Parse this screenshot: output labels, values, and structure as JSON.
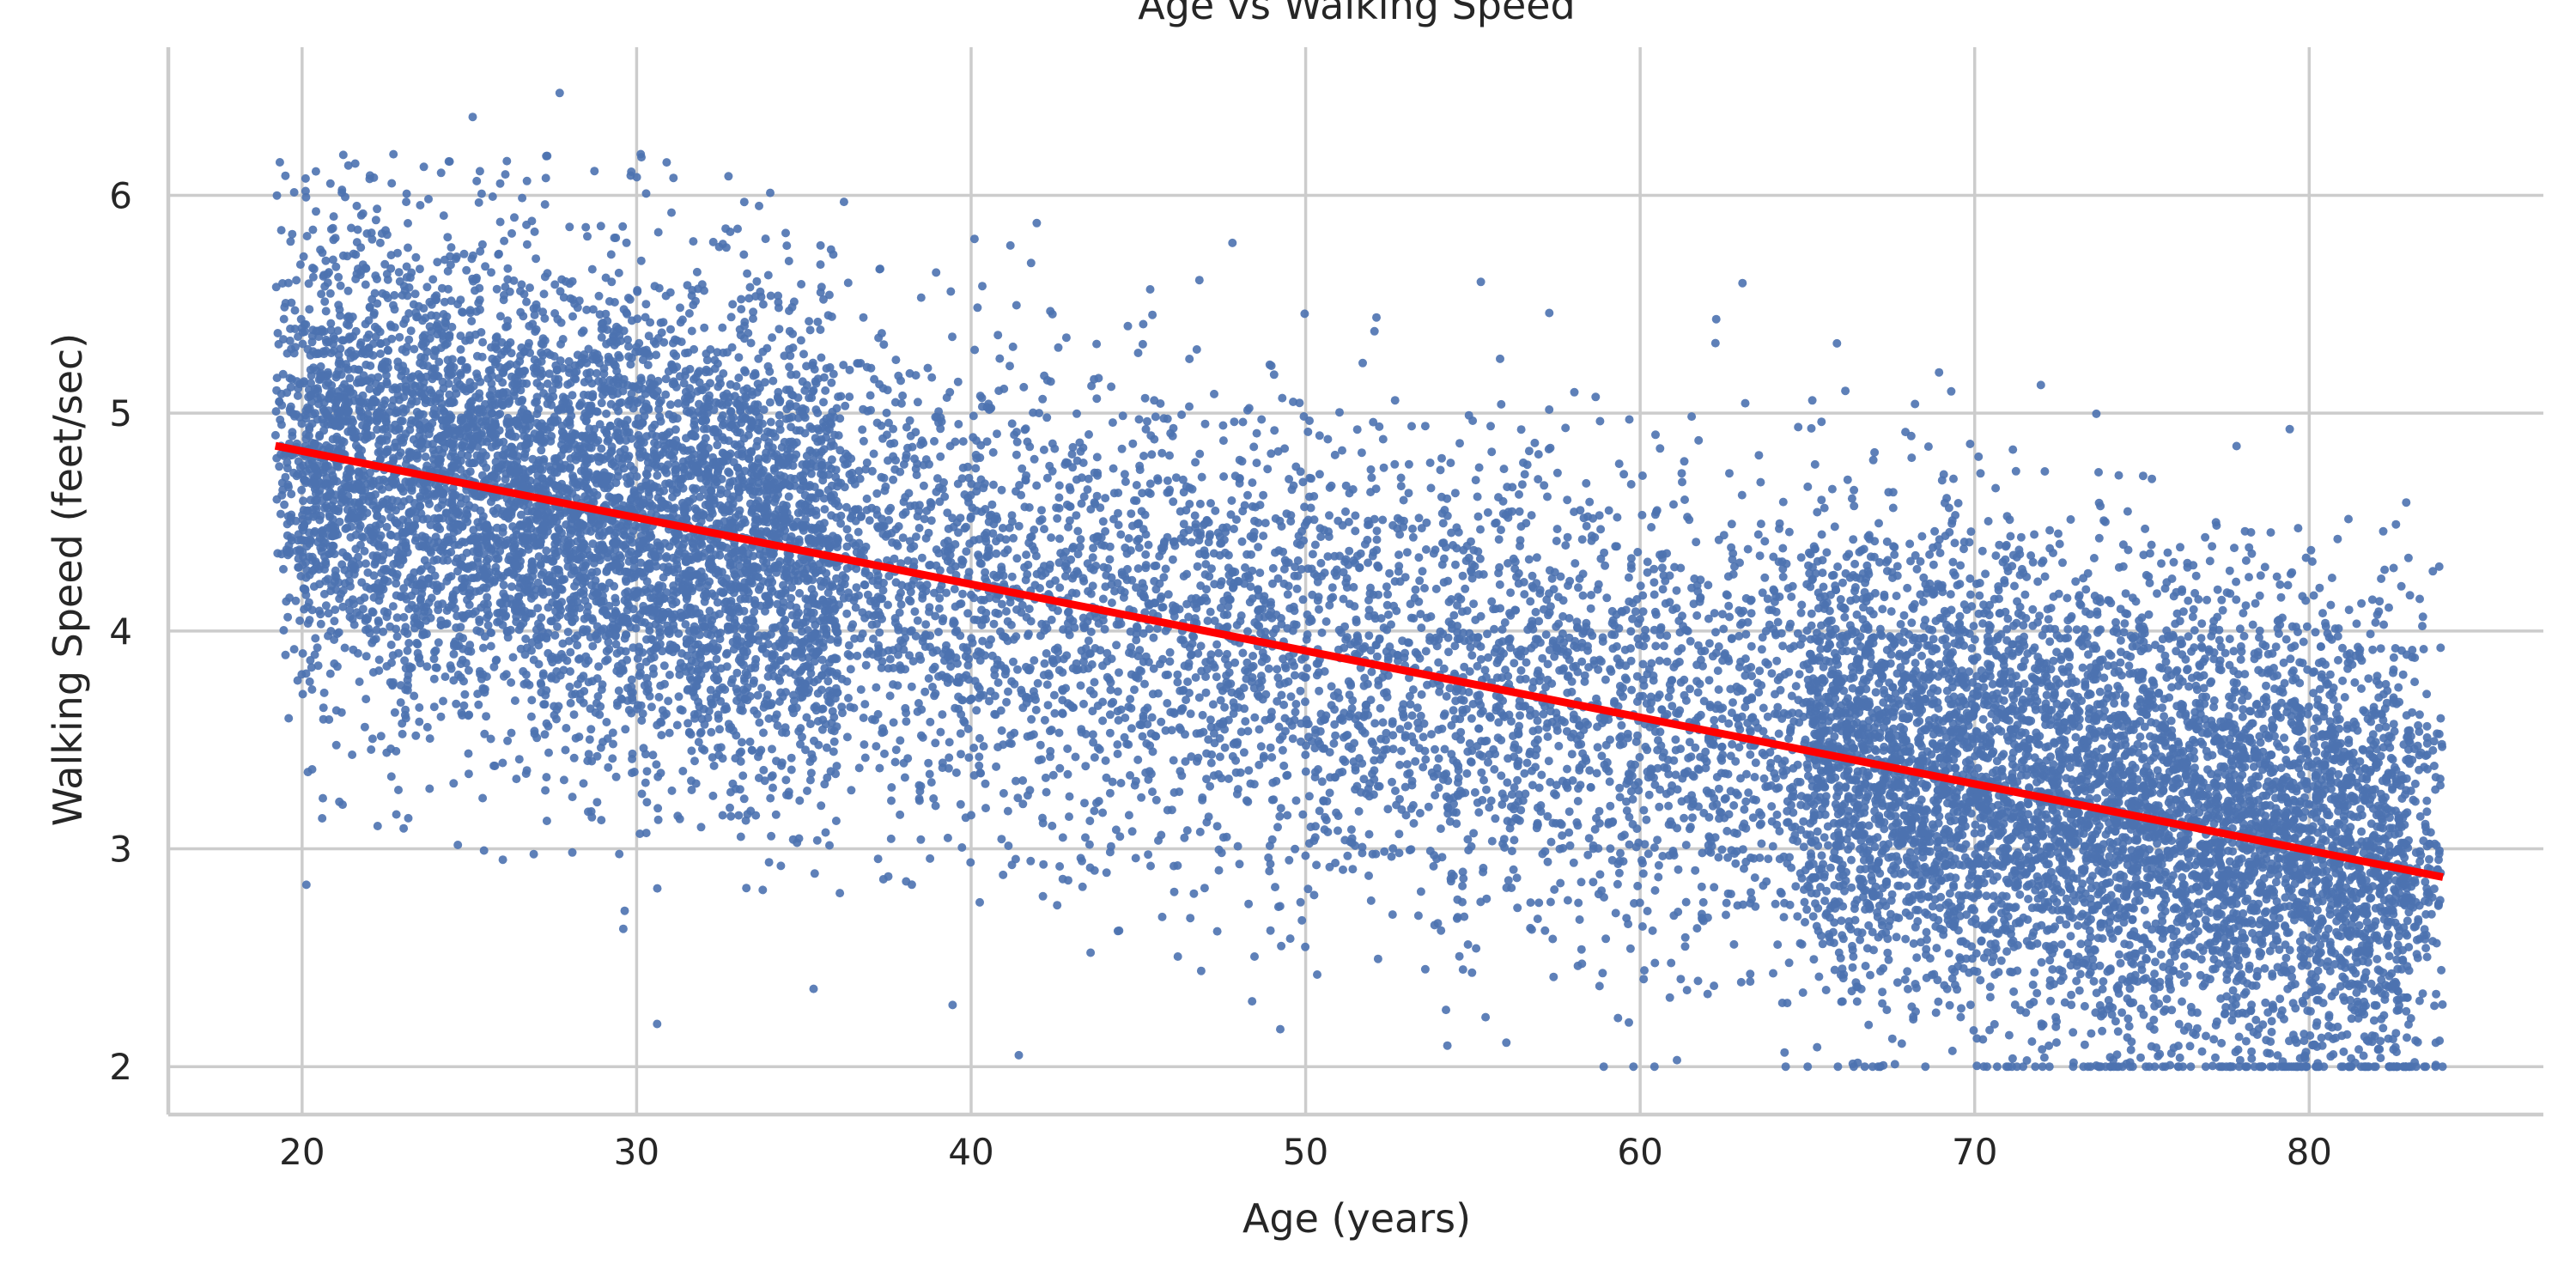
{
  "chart_data": {
    "type": "scatter",
    "title": "Age vs Walking Speed",
    "xlabel": "Age (years)",
    "ylabel": "Walking Speed (feet/sec)",
    "xlim": [
      16,
      87
    ],
    "ylim": [
      1.78,
      6.68
    ],
    "xticks": [
      20,
      30,
      40,
      50,
      60,
      70,
      80
    ],
    "yticks": [
      2,
      3,
      4,
      5,
      6
    ],
    "grid": true,
    "legend": "none",
    "colors": {
      "points": "#4c72b0",
      "fit_line": "#ff0000",
      "grid": "#cccccc",
      "axis": "#cccccc",
      "text": "#262626"
    },
    "points": {
      "approx_count": 16000,
      "x_range": [
        19.2,
        84.0
      ],
      "y_min": 2.0,
      "trend_intercept": 5.43,
      "trend_slope": -0.0303,
      "spread_sd": 0.55,
      "notable": [
        [
          27.7,
          6.47
        ],
        [
          25.1,
          6.36
        ],
        [
          27.3,
          6.18
        ],
        [
          19.5,
          6.09
        ],
        [
          31.1,
          6.08
        ],
        [
          36.2,
          5.97
        ],
        [
          40.1,
          5.8
        ],
        [
          69.3,
          5.1
        ],
        [
          82.9,
          4.59
        ],
        [
          20.6,
          3.14
        ],
        [
          26.0,
          2.95
        ],
        [
          48.4,
          2.3
        ],
        [
          61.1,
          2.03
        ],
        [
          56.0,
          2.11
        ]
      ]
    },
    "series": [
      {
        "type": "line",
        "x": [
          19.2,
          84.0
        ],
        "y": [
          4.85,
          2.87
        ]
      }
    ]
  }
}
